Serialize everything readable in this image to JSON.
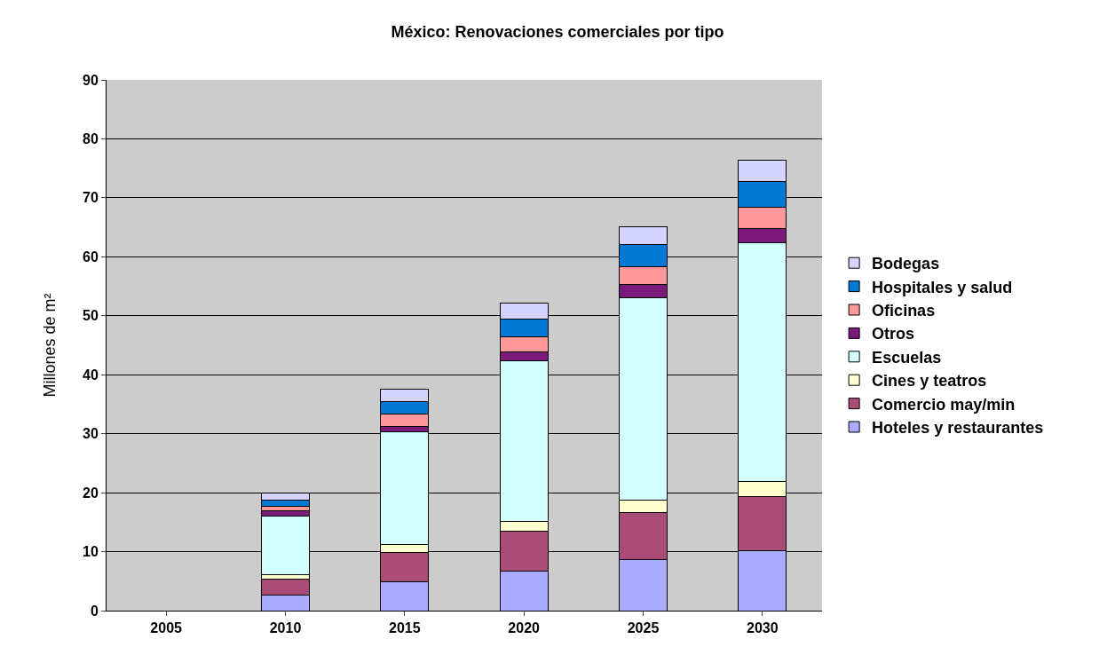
{
  "chart_data": {
    "type": "bar",
    "title": "México: Renovaciones comerciales por tipo",
    "ylabel": "Millones de m²",
    "categories": [
      "2005",
      "2010",
      "2015",
      "2020",
      "2025",
      "2030"
    ],
    "stacked": true,
    "series": [
      {
        "name": "Hoteles y restaurantes",
        "color": "#aaaaff",
        "values": [
          null,
          2.7,
          4.9,
          6.7,
          8.7,
          10.1
        ]
      },
      {
        "name": "Comercio may/min",
        "color": "#aa4c78",
        "values": [
          null,
          2.7,
          4.9,
          6.8,
          7.9,
          9.3
        ]
      },
      {
        "name": "Cines y teatros",
        "color": "#ffffd0",
        "values": [
          null,
          0.7,
          1.4,
          1.6,
          2.2,
          2.5
        ]
      },
      {
        "name": "Escuelas",
        "color": "#d4ffff",
        "values": [
          null,
          10.0,
          19.1,
          27.2,
          34.3,
          40.5
        ]
      },
      {
        "name": "Otros",
        "color": "#7b1a7b",
        "values": [
          null,
          0.8,
          1.0,
          1.6,
          2.2,
          2.4
        ]
      },
      {
        "name": "Oficinas",
        "color": "#ff9999",
        "values": [
          null,
          0.8,
          2.0,
          2.5,
          3.0,
          3.6
        ]
      },
      {
        "name": "Hospitales y salud",
        "color": "#0078d4",
        "values": [
          null,
          1.1,
          2.2,
          3.0,
          3.8,
          4.4
        ]
      },
      {
        "name": "Bodegas",
        "color": "#d4d4ff",
        "values": [
          null,
          1.1,
          2.0,
          2.8,
          3.0,
          3.6
        ]
      }
    ],
    "ylim": [
      0,
      90
    ],
    "yticks": [
      0,
      10,
      20,
      30,
      40,
      50,
      60,
      70,
      80,
      90
    ],
    "grid": "y",
    "legend": "right"
  }
}
